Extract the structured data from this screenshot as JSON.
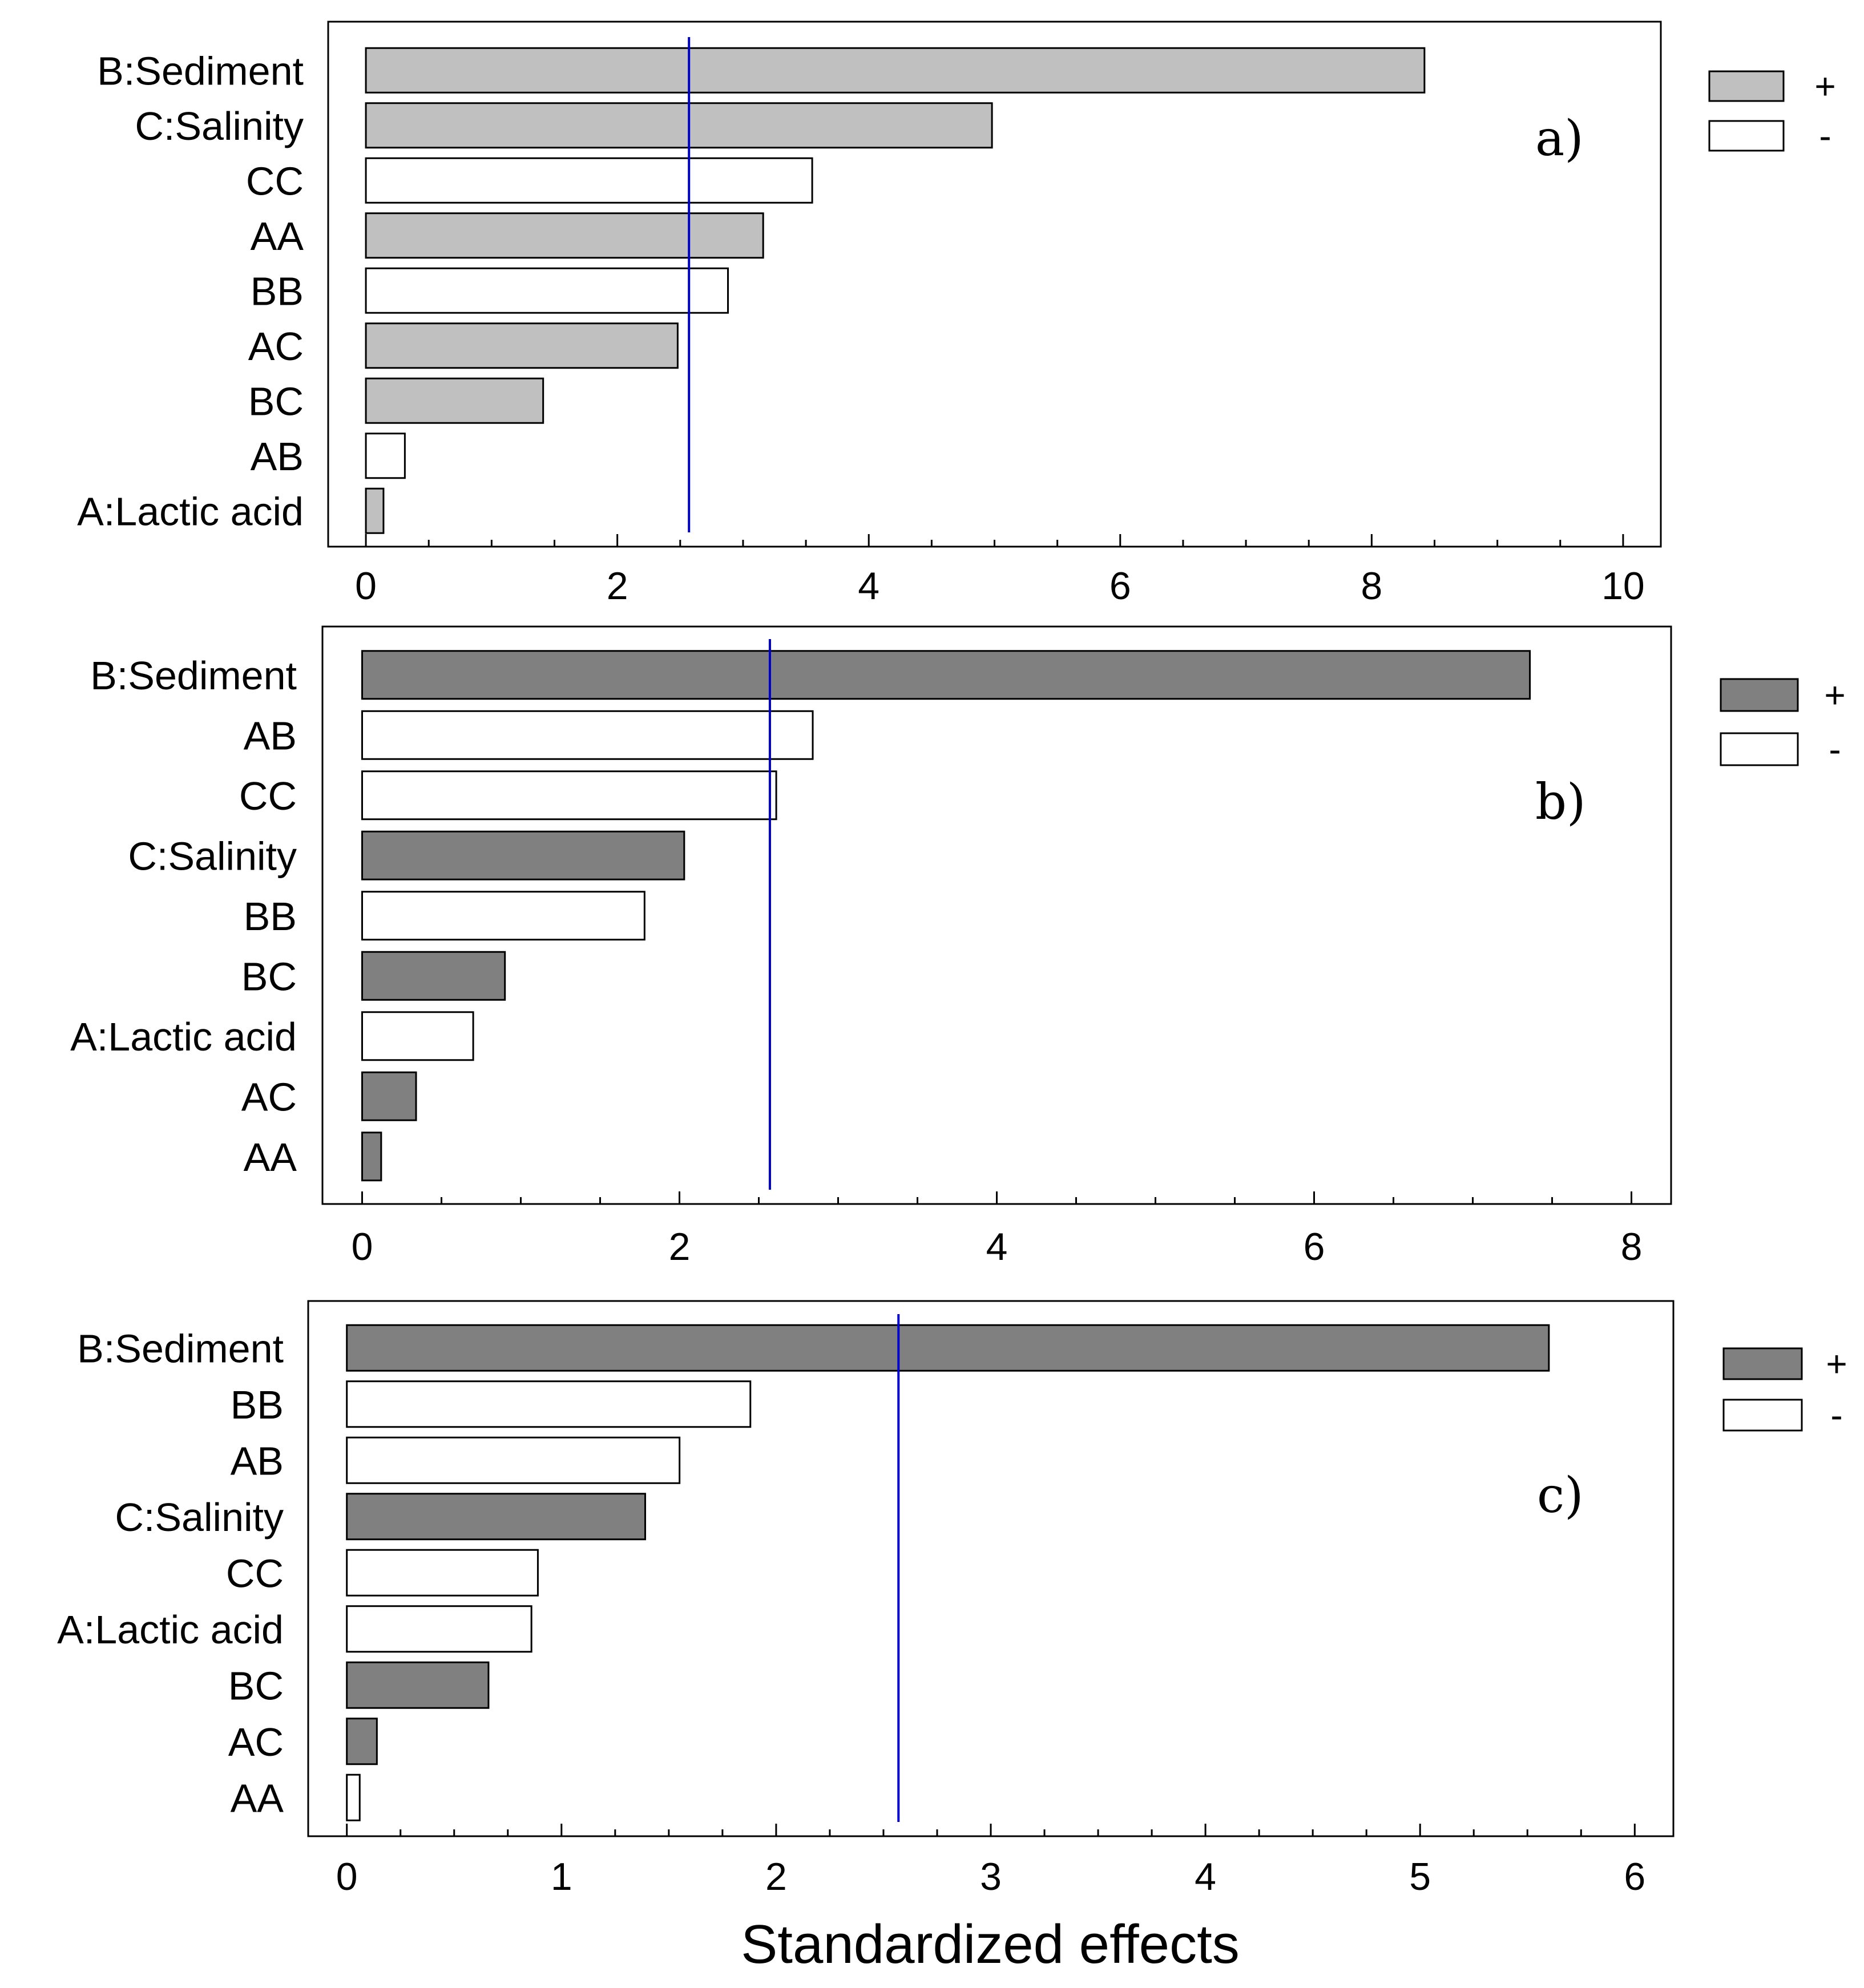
{
  "xlabel": "Standardized effects",
  "legend": {
    "positive_label": "+",
    "negative_label": "-"
  },
  "colors": {
    "panel_a_positive": "#c0c0c0",
    "panel_b_positive": "#808080",
    "panel_c_positive": "#808080",
    "negative": "#ffffff",
    "reference_line": "#0000cc",
    "bar_border": "#000000"
  },
  "chart_data": [
    {
      "type": "bar",
      "orientation": "horizontal",
      "panel_label": "a)",
      "categories": [
        "B:Sediment",
        "C:Salinity",
        "CC",
        "AA",
        "BB",
        "AC",
        "BC",
        "AB",
        "A:Lactic acid"
      ],
      "values": [
        8.42,
        4.98,
        3.55,
        3.16,
        2.88,
        2.48,
        1.41,
        0.31,
        0.14
      ],
      "signs": [
        "+",
        "+",
        "-",
        "+",
        "-",
        "+",
        "+",
        "-",
        "+"
      ],
      "xlim": [
        -0.3,
        10.3
      ],
      "xticks": [
        0,
        2,
        4,
        6,
        8,
        10
      ],
      "xtick_labels": [
        "0",
        "2",
        "4",
        "6",
        "8",
        "10"
      ],
      "reference_line": 2.57,
      "legend_position": "right"
    },
    {
      "type": "bar",
      "orientation": "horizontal",
      "panel_label": "b)",
      "categories": [
        "B:Sediment",
        "AB",
        "CC",
        "C:Salinity",
        "BB",
        "BC",
        "A:Lactic acid",
        "AC",
        "AA"
      ],
      "values": [
        7.36,
        2.84,
        2.61,
        2.03,
        1.78,
        0.9,
        0.7,
        0.34,
        0.12
      ],
      "signs": [
        "+",
        "-",
        "-",
        "+",
        "-",
        "+",
        "-",
        "+",
        "+"
      ],
      "xlim": [
        -0.25,
        8.25
      ],
      "xticks": [
        0,
        2,
        4,
        6,
        8
      ],
      "xtick_labels": [
        "0",
        "2",
        "4",
        "6",
        "8"
      ],
      "reference_line": 2.57,
      "legend_position": "right"
    },
    {
      "type": "bar",
      "orientation": "horizontal",
      "panel_label": "c)",
      "categories": [
        "B:Sediment",
        "BB",
        "AB",
        "C:Salinity",
        "CC",
        "A:Lactic acid",
        "BC",
        "AC",
        "AA"
      ],
      "values": [
        5.6,
        1.88,
        1.55,
        1.39,
        0.89,
        0.86,
        0.66,
        0.14,
        0.06
      ],
      "signs": [
        "+",
        "-",
        "-",
        "+",
        "-",
        "-",
        "+",
        "+",
        "-"
      ],
      "xlim": [
        -0.18,
        6.18
      ],
      "xticks": [
        0,
        1,
        2,
        3,
        4,
        5,
        6
      ],
      "xtick_labels": [
        "0",
        "1",
        "2",
        "3",
        "4",
        "5",
        "6"
      ],
      "reference_line": 2.57,
      "legend_position": "right"
    }
  ]
}
